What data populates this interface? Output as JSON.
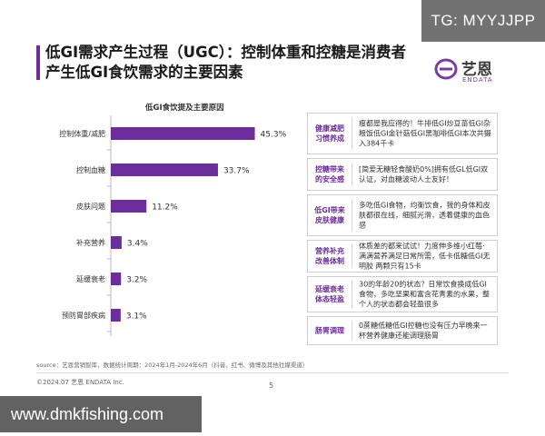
{
  "watermarks": {
    "top_right": "TG: MYYJJPP",
    "bottom_left": "www.dmkfishing.com"
  },
  "header": {
    "title": "低GI需求产生过程（UGC）：控制体重和控糖是消费者产生低GI食饮需求的主要因素"
  },
  "logo": {
    "name": "艺恩",
    "subtitle": "ENDATA",
    "color": "#7a3aa8"
  },
  "colors": {
    "accent": "#6c2e9c",
    "bar": "#6c2e9c"
  },
  "chart_data": {
    "type": "bar",
    "orientation": "horizontal",
    "title": "低GI食饮提及主要原因",
    "categories": [
      "控制体重/减肥",
      "控制血糖",
      "皮肤问题",
      "补充营养",
      "延缓衰老",
      "预防胃部疾病"
    ],
    "values": [
      45.3,
      33.7,
      11.2,
      3.4,
      3.2,
      3.1
    ],
    "value_labels": [
      "45.3%",
      "33.7%",
      "11.2%",
      "3.4%",
      "3.2%",
      "3.1%"
    ],
    "unit": "%",
    "xlim": [
      0,
      50
    ],
    "grid": false,
    "legend": "none"
  },
  "reasons": [
    {
      "label": "健康减肥 习惯养成",
      "text": "瘦都是我应得的！牛排低GI炒豆苗低GI杂粮饭低GI金针菇低GI黑咖啡低GI本次共摄入384千卡"
    },
    {
      "label": "控糖带来 的安全感",
      "text": "[简爱无糖轻食酸奶0%]拥有低GL低GI双认证，对血糖波动人士友好！"
    },
    {
      "label": "低GI带来 皮肤健康",
      "text": "多吃低GI食物，均衡饮食，我的身体和皮肤都很在线，细腻光滑，透着健康的血色感"
    },
    {
      "label": "营养补充 改善体制",
      "text": "体质差的都来试试！力度伸多维小红莓·满满营养满足日常所需，低卡低糖低GI无明胶 两颗只有15卡"
    },
    {
      "label": "延缓衰老 体态轻盈",
      "text": "30的年龄20的状态？日常饮食换成低GI食物，多吃坚果和富含花青素的水果，整个人的状态都会轻盈很多"
    },
    {
      "label": "肠胃调理",
      "text": "0蔗糖低糖低GI控糖也没有压力早晚来一杯营养健康还能调理肠胃"
    }
  ],
  "footer": {
    "source": "source：艺恩营销智库，数据统计周期：2024年1月-2024年6月（抖音、红书、微博及其他社媒渠道）",
    "copyright": "©2024.07 艺恩 ENDATA Inc.",
    "page": "5"
  }
}
